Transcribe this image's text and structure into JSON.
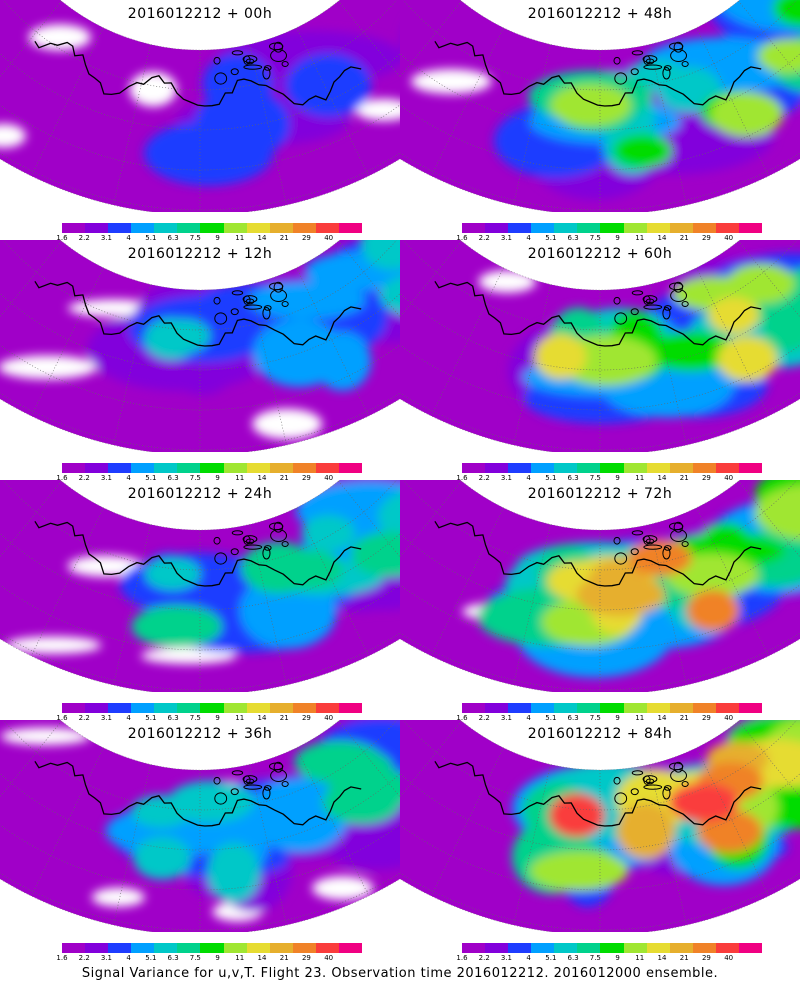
{
  "caption": "Signal Variance for u,v,T. Flight 23. Observation time 2016012212. 2016012000 ensemble.",
  "panels": [
    {
      "title": "2016012212 + 00h",
      "level": 0
    },
    {
      "title": "2016012212 + 48h",
      "level": 3
    },
    {
      "title": "2016012212 + 12h",
      "level": 1
    },
    {
      "title": "2016012212 + 60h",
      "level": 4
    },
    {
      "title": "2016012212 + 24h",
      "level": 2
    },
    {
      "title": "2016012212 + 72h",
      "level": 5
    },
    {
      "title": "2016012212 + 36h",
      "level": 2
    },
    {
      "title": "2016012212 + 84h",
      "level": 6
    }
  ],
  "colorbar": {
    "labels": [
      "1.6",
      "2.2",
      "3.1",
      "4",
      "5.1",
      "6.3",
      "7.5",
      "9",
      "11",
      "14",
      "21",
      "29",
      "40"
    ],
    "colors": [
      "#a000c8",
      "#8200dc",
      "#1e3cff",
      "#00a0ff",
      "#00c8c8",
      "#00d28c",
      "#00dc00",
      "#a0e632",
      "#e6dc32",
      "#e6af2d",
      "#f08228",
      "#fa3c3c",
      "#f00082"
    ]
  }
}
